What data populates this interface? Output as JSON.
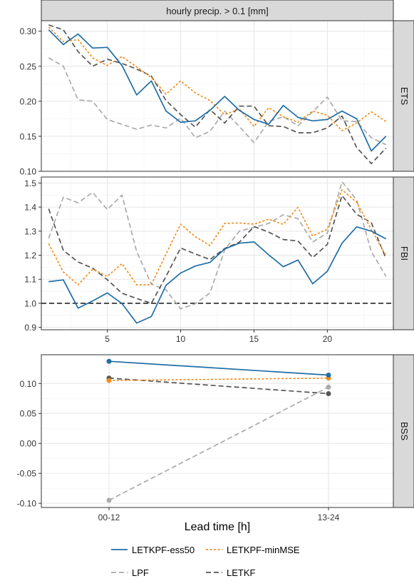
{
  "chart_data": {
    "type": "line",
    "strip_title": "hourly precip. > 0.1 [mm]",
    "x_axis_label": "Lead time [h]",
    "series_styles": [
      {
        "name": "LETKPF-ess50",
        "color": "#1f6ea6",
        "dash": "solid"
      },
      {
        "name": "LETKPF-minMSE",
        "color": "#f28e1c",
        "dash": "dotted"
      },
      {
        "name": "LPF",
        "color": "#aaaaaa",
        "dash": "dashed"
      },
      {
        "name": "LETKF",
        "color": "#555555",
        "dash": "dashed"
      }
    ],
    "legend": {
      "position": "bottom",
      "entries": [
        "LETKPF-ess50",
        "LETKPF-minMSE",
        "LPF",
        "LETKF"
      ]
    },
    "panels": [
      {
        "facet_label": "ETS",
        "x_range": [
          0.5,
          24.5
        ],
        "y_range": [
          0.1,
          0.315
        ],
        "y_ticks": [
          "0.10",
          "0.15",
          "0.20",
          "0.25",
          "0.30"
        ],
        "y_tick_values": [
          0.1,
          0.15,
          0.2,
          0.25,
          0.3
        ],
        "x": [
          1,
          2,
          3,
          4,
          5,
          6,
          7,
          8,
          9,
          10,
          11,
          12,
          13,
          14,
          15,
          16,
          17,
          18,
          19,
          20,
          21,
          22,
          23,
          24
        ],
        "series": [
          {
            "name": "LETKPF-ess50",
            "values": [
              0.302,
              0.281,
              0.296,
              0.276,
              0.277,
              0.251,
              0.209,
              0.229,
              0.186,
              0.17,
              0.172,
              0.187,
              0.207,
              0.187,
              0.174,
              0.167,
              0.194,
              0.177,
              0.172,
              0.174,
              0.186,
              0.175,
              0.129,
              0.15
            ]
          },
          {
            "name": "LETKPF-minMSE",
            "values": [
              0.306,
              0.285,
              0.288,
              0.262,
              0.251,
              0.264,
              0.249,
              0.234,
              0.21,
              0.229,
              0.212,
              0.201,
              0.181,
              0.189,
              0.164,
              0.191,
              0.178,
              0.17,
              0.186,
              0.18,
              0.158,
              0.169,
              0.185,
              0.171
            ]
          },
          {
            "name": "LPF",
            "values": [
              0.262,
              0.25,
              0.202,
              0.2,
              0.174,
              0.167,
              0.16,
              0.166,
              0.162,
              0.176,
              0.148,
              0.157,
              0.186,
              0.164,
              0.141,
              0.171,
              0.178,
              0.165,
              0.185,
              0.206,
              0.172,
              0.171,
              0.148,
              0.138
            ]
          },
          {
            "name": "LETKF",
            "values": [
              0.309,
              0.302,
              0.271,
              0.25,
              0.26,
              0.254,
              0.246,
              0.236,
              0.201,
              0.181,
              0.163,
              0.188,
              0.169,
              0.193,
              0.193,
              0.165,
              0.164,
              0.155,
              0.155,
              0.162,
              0.179,
              0.134,
              0.111,
              0.133
            ]
          }
        ],
        "reference_line": null
      },
      {
        "facet_label": "FBI",
        "x_range": [
          0.5,
          24.5
        ],
        "y_range": [
          0.89,
          1.525
        ],
        "y_ticks": [
          "0.9",
          "1.0",
          "1.1",
          "1.2",
          "1.3",
          "1.4",
          "1.5"
        ],
        "y_tick_values": [
          0.9,
          1.0,
          1.1,
          1.2,
          1.3,
          1.4,
          1.5
        ],
        "x": [
          1,
          2,
          3,
          4,
          5,
          6,
          7,
          8,
          9,
          10,
          11,
          12,
          13,
          14,
          15,
          16,
          17,
          18,
          19,
          20,
          21,
          22,
          23,
          24
        ],
        "series": [
          {
            "name": "LETKPF-ess50",
            "values": [
              1.09,
              1.097,
              0.98,
              1.01,
              1.043,
              0.999,
              0.918,
              0.945,
              1.075,
              1.126,
              1.155,
              1.17,
              1.226,
              1.25,
              1.255,
              1.202,
              1.152,
              1.18,
              1.081,
              1.133,
              1.25,
              1.318,
              1.3,
              1.268
            ]
          },
          {
            "name": "LETKPF-minMSE",
            "values": [
              1.248,
              1.13,
              1.077,
              1.142,
              1.112,
              1.165,
              1.077,
              1.077,
              1.205,
              1.329,
              1.277,
              1.24,
              1.332,
              1.334,
              1.329,
              1.35,
              1.328,
              1.399,
              1.28,
              1.308,
              1.472,
              1.42,
              1.307,
              1.198
            ]
          },
          {
            "name": "LPF",
            "values": [
              1.27,
              1.441,
              1.418,
              1.461,
              1.39,
              1.45,
              1.215,
              1.08,
              1.055,
              0.977,
              0.998,
              1.043,
              1.222,
              1.3,
              1.316,
              1.332,
              1.368,
              1.352,
              1.255,
              1.292,
              1.505,
              1.43,
              1.215,
              1.112
            ]
          },
          {
            "name": "LETKF",
            "values": [
              1.393,
              1.22,
              1.172,
              1.146,
              1.098,
              1.042,
              1.02,
              1.0,
              1.112,
              1.23,
              1.205,
              1.182,
              1.228,
              1.254,
              1.319,
              1.296,
              1.265,
              1.259,
              1.19,
              1.245,
              1.448,
              1.37,
              1.335,
              1.186
            ]
          }
        ],
        "reference_line": {
          "y": 1.0,
          "style": "dashed",
          "color": "#000000"
        }
      },
      {
        "facet_label": "BSS",
        "x_type": "categorical",
        "categories": [
          "00-12",
          "13-24"
        ],
        "y_range": [
          -0.107,
          0.148
        ],
        "y_ticks": [
          "-0.10",
          "-0.05",
          "0.00",
          "0.05",
          "0.10"
        ],
        "y_tick_values": [
          -0.1,
          -0.05,
          0.0,
          0.05,
          0.1
        ],
        "markers": true,
        "series": [
          {
            "name": "LETKPF-ess50",
            "values": [
              0.137,
              0.114
            ]
          },
          {
            "name": "LETKPF-minMSE",
            "values": [
              0.105,
              0.109
            ]
          },
          {
            "name": "LPF",
            "values": [
              -0.095,
              0.094
            ]
          },
          {
            "name": "LETKF",
            "values": [
              0.109,
              0.083
            ]
          }
        ],
        "reference_line": null
      }
    ],
    "x_ticks_line_panels": [
      "5",
      "10",
      "15",
      "20"
    ],
    "x_tick_values_line_panels": [
      5,
      10,
      15,
      20
    ]
  }
}
